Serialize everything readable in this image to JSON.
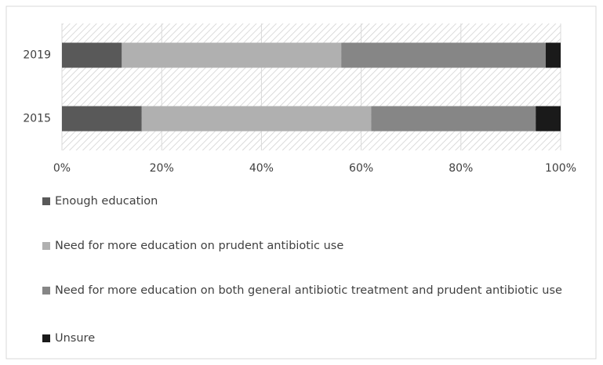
{
  "chart_data": {
    "type": "stacked-bar-horizontal",
    "categories": [
      "2019",
      "2015"
    ],
    "series": [
      {
        "name": "Enough education",
        "color": "#595959",
        "values": [
          12,
          16
        ]
      },
      {
        "name": "Need for more education on prudent antibiotic use",
        "color": "#b0b0b0",
        "values": [
          44,
          46
        ]
      },
      {
        "name": "Need for more education on both general antibiotic treatment and prudent antibiotic use",
        "color": "#868686",
        "values": [
          41,
          33
        ]
      },
      {
        "name": "Unsure",
        "color": "#1a1a1a",
        "values": [
          3,
          5
        ]
      }
    ],
    "xlim": [
      0,
      100
    ],
    "xticks": [
      {
        "value": 0,
        "label": "0%"
      },
      {
        "value": 20,
        "label": "20%"
      },
      {
        "value": 40,
        "label": "40%"
      },
      {
        "value": 60,
        "label": "60%"
      },
      {
        "value": 80,
        "label": "80%"
      },
      {
        "value": 100,
        "label": "100%"
      }
    ],
    "grid": true
  }
}
